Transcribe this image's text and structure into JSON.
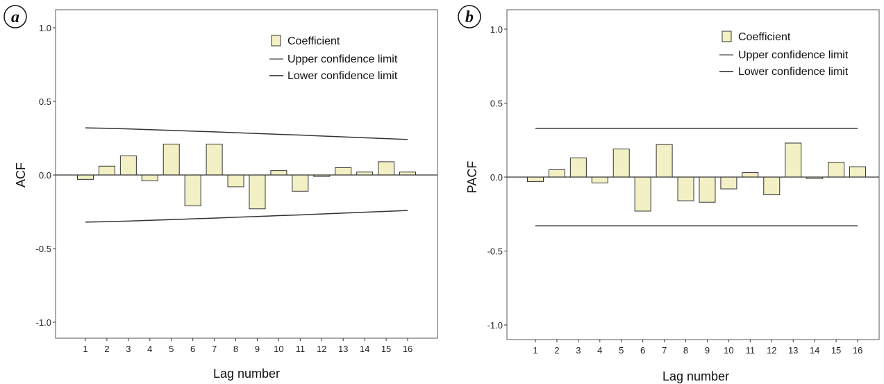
{
  "legend": {
    "coefficient": "Coefficient",
    "upper": "Upper confidence limit",
    "lower": "Lower confidence limit"
  },
  "colors": {
    "bar_fill": "#f2f0c4",
    "bar_stroke": "#333333",
    "line": "#333333"
  },
  "chart_data": [
    {
      "panel": "a",
      "type": "bar",
      "ylabel": "ACF",
      "xlabel": "Lag number",
      "ylim": [
        -1.1,
        1.1
      ],
      "yticks": [
        "1.0",
        "0.5",
        "0.0",
        "-0.5",
        "-1.0"
      ],
      "ytick_values": [
        1.0,
        0.5,
        0.0,
        -0.5,
        -1.0
      ],
      "categories": [
        "1",
        "2",
        "3",
        "4",
        "5",
        "6",
        "7",
        "8",
        "9",
        "10",
        "11",
        "12",
        "13",
        "14",
        "15",
        "16"
      ],
      "series": [
        {
          "name": "Coefficient",
          "values": [
            -0.03,
            0.06,
            0.13,
            -0.04,
            0.21,
            -0.21,
            0.21,
            -0.08,
            -0.23,
            0.03,
            -0.11,
            -0.01,
            0.05,
            0.02,
            0.09,
            0.02
          ]
        },
        {
          "name": "Upper confidence limit",
          "values": [
            0.32,
            0.317,
            0.313,
            0.308,
            0.303,
            0.298,
            0.293,
            0.287,
            0.282,
            0.276,
            0.271,
            0.265,
            0.259,
            0.253,
            0.247,
            0.241
          ]
        },
        {
          "name": "Lower confidence limit",
          "values": [
            -0.32,
            -0.317,
            -0.313,
            -0.308,
            -0.303,
            -0.298,
            -0.293,
            -0.287,
            -0.282,
            -0.276,
            -0.271,
            -0.265,
            -0.259,
            -0.253,
            -0.247,
            -0.241
          ]
        }
      ]
    },
    {
      "panel": "b",
      "type": "bar",
      "ylabel": "PACF",
      "xlabel": "Lag number",
      "ylim": [
        -1.1,
        1.1
      ],
      "yticks": [
        "1.0",
        "0.5",
        "0.0",
        "-0.5",
        "-1.0"
      ],
      "ytick_values": [
        1.0,
        0.5,
        0.0,
        -0.5,
        -1.0
      ],
      "categories": [
        "1",
        "2",
        "3",
        "4",
        "5",
        "6",
        "7",
        "8",
        "9",
        "10",
        "11",
        "12",
        "13",
        "14",
        "15",
        "16"
      ],
      "series": [
        {
          "name": "Coefficient",
          "values": [
            -0.03,
            0.05,
            0.13,
            -0.04,
            0.19,
            -0.23,
            0.22,
            -0.16,
            -0.17,
            -0.08,
            0.03,
            -0.12,
            0.23,
            -0.01,
            0.1,
            0.07
          ]
        },
        {
          "name": "Upper confidence limit",
          "values": [
            0.33,
            0.33,
            0.33,
            0.33,
            0.33,
            0.33,
            0.33,
            0.33,
            0.33,
            0.33,
            0.33,
            0.33,
            0.33,
            0.33,
            0.33,
            0.33
          ]
        },
        {
          "name": "Lower confidence limit",
          "values": [
            -0.33,
            -0.33,
            -0.33,
            -0.33,
            -0.33,
            -0.33,
            -0.33,
            -0.33,
            -0.33,
            -0.33,
            -0.33,
            -0.33,
            -0.33,
            -0.33,
            -0.33,
            -0.33
          ]
        }
      ]
    }
  ]
}
